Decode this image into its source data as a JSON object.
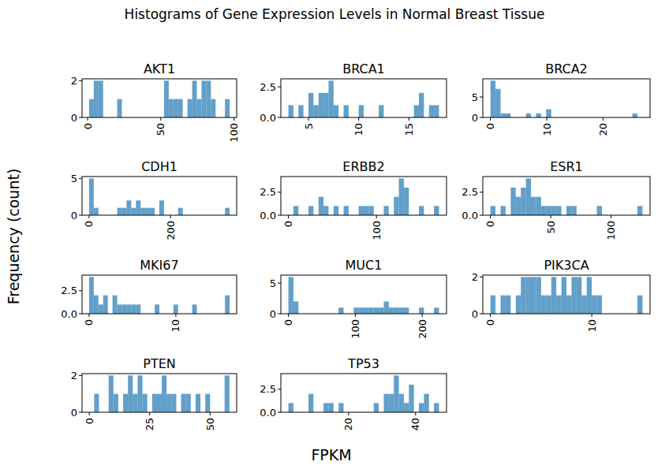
{
  "title": "Histograms of Gene Expression Levels in Normal Breast Tissue",
  "x_label": "FPKM",
  "y_label": "Frequency (count)",
  "chart_data": [
    {
      "type": "histogram",
      "title": "AKT1",
      "color": "#1f77b4",
      "bins": [
        1,
        4.2,
        7.4,
        10.6,
        13.8,
        17,
        20.2,
        23.4,
        26.6,
        29.8,
        33,
        36.2,
        39.4,
        42.6,
        45.8,
        49,
        52.2,
        55.4,
        58.6,
        61.8,
        65,
        68.2,
        71.4,
        74.6,
        77.8,
        81,
        84.2,
        87.4,
        90.6,
        93.8,
        97
      ],
      "counts": [
        1,
        2,
        2,
        0,
        0,
        0,
        1,
        0,
        0,
        0,
        0,
        0,
        0,
        0,
        0,
        0,
        2,
        1,
        1,
        1,
        0,
        1,
        2,
        1,
        2,
        2,
        1,
        0,
        0,
        1
      ],
      "xlim": [
        -3.8,
        101.8
      ],
      "ylim": [
        0,
        2.1
      ],
      "xticks": [
        0,
        50,
        100
      ],
      "yticks": [
        0,
        2
      ]
    },
    {
      "type": "histogram",
      "title": "BRCA1",
      "color": "#1f77b4",
      "bins": [
        3,
        3.5,
        4,
        4.5,
        5,
        5.5,
        6,
        6.5,
        7,
        7.5,
        8,
        8.5,
        9,
        9.5,
        10,
        10.5,
        11,
        11.5,
        12,
        12.5,
        13,
        13.5,
        14,
        14.5,
        15,
        15.5,
        16,
        16.5,
        17,
        17.5,
        18
      ],
      "counts": [
        1,
        0,
        1,
        0,
        2,
        1,
        2,
        2,
        3,
        1,
        0,
        1,
        0,
        0,
        1,
        0,
        0,
        0,
        1,
        0,
        0,
        0,
        0,
        0,
        0,
        1,
        2,
        0,
        1,
        1
      ],
      "xlim": [
        2.25,
        18.75
      ],
      "ylim": [
        0,
        3.15
      ],
      "xticks": [
        5,
        10,
        15
      ],
      "yticks": [
        {
          "value": 0,
          "label": "0.0"
        },
        2.5
      ]
    },
    {
      "type": "histogram",
      "title": "BRCA2",
      "color": "#1f77b4",
      "bins": [
        0,
        0.9,
        1.8,
        2.7,
        3.6,
        4.5,
        5.4,
        6.3,
        7.2,
        8.1,
        9,
        9.9,
        10.8,
        11.7,
        12.6,
        13.5,
        14.4,
        15.3,
        16.2,
        17.1,
        18,
        18.9,
        19.8,
        20.7,
        21.6,
        22.5,
        23.4,
        24.3,
        25.2,
        26.1,
        27
      ],
      "counts": [
        9,
        7,
        1,
        1,
        0,
        0,
        0,
        1,
        0,
        1,
        0,
        2,
        0,
        0,
        0,
        0,
        0,
        0,
        0,
        0,
        0,
        0,
        0,
        0,
        0,
        0,
        0,
        0,
        1,
        0
      ],
      "xlim": [
        -1.35,
        28.35
      ],
      "ylim": [
        0,
        9.45
      ],
      "xticks": [
        0,
        10,
        20
      ],
      "yticks": [
        0,
        5
      ]
    },
    {
      "type": "histogram",
      "title": "CDH1",
      "color": "#1f77b4",
      "bins": [
        0,
        11.5,
        23,
        34.5,
        46,
        57.5,
        69,
        80.5,
        92,
        103.5,
        115,
        126.5,
        138,
        149.5,
        161,
        172.5,
        184,
        195.5,
        207,
        218.5,
        230,
        241.5,
        253,
        264.5,
        276,
        287.5,
        299,
        310.5,
        322,
        333.5,
        345
      ],
      "counts": [
        5,
        1,
        0,
        0,
        0,
        0,
        1,
        1,
        2,
        1,
        2,
        1,
        1,
        1,
        0,
        2,
        0,
        0,
        0,
        1,
        0,
        0,
        0,
        0,
        0,
        0,
        0,
        0,
        0,
        1
      ],
      "xlim": [
        -17.25,
        362.25
      ],
      "ylim": [
        0,
        5.25
      ],
      "xticks": [
        0,
        200
      ],
      "yticks": [
        0,
        5
      ]
    },
    {
      "type": "histogram",
      "title": "ERBB2",
      "color": "#1f77b4",
      "bins": [
        0,
        5.7,
        11.4,
        17.1,
        22.8,
        28.5,
        34.2,
        39.9,
        45.6,
        51.3,
        57,
        62.7,
        68.4,
        74.1,
        79.8,
        85.5,
        91.2,
        96.9,
        102.6,
        108.3,
        114,
        119.7,
        125.4,
        131.1,
        136.8,
        142.5,
        148.2,
        153.9,
        159.6,
        165.3,
        171
      ],
      "counts": [
        0,
        1,
        0,
        0,
        1,
        0,
        2,
        1,
        0,
        1,
        0,
        1,
        0,
        0,
        1,
        1,
        1,
        0,
        0,
        1,
        0,
        2,
        4,
        3,
        0,
        0,
        1,
        0,
        0,
        1
      ],
      "xlim": [
        -8.55,
        179.55
      ],
      "ylim": [
        0,
        4.2
      ],
      "xticks": [
        0,
        100
      ],
      "yticks": [
        {
          "value": 0,
          "label": "0.0"
        },
        2.5
      ]
    },
    {
      "type": "histogram",
      "title": "ESR1",
      "color": "#1f77b4",
      "bins": [
        0,
        4.2,
        8.4,
        12.6,
        16.8,
        21,
        25.2,
        29.4,
        33.6,
        37.8,
        42,
        46.2,
        50.4,
        54.6,
        58.8,
        63,
        67.2,
        71.4,
        75.6,
        79.8,
        84,
        88.2,
        92.4,
        96.6,
        100.8,
        105,
        109.2,
        113.4,
        117.6,
        121.8,
        126
      ],
      "counts": [
        1,
        0,
        1,
        0,
        3,
        2,
        3,
        4,
        2,
        2,
        1,
        1,
        1,
        1,
        0,
        1,
        1,
        0,
        0,
        0,
        0,
        1,
        0,
        0,
        0,
        0,
        0,
        0,
        0,
        1
      ],
      "xlim": [
        -6.3,
        132.3
      ],
      "ylim": [
        0,
        4.2
      ],
      "xticks": [
        0,
        50,
        100
      ],
      "yticks": [
        {
          "value": 0,
          "label": "0.0"
        },
        2.5
      ]
    },
    {
      "type": "histogram",
      "title": "MKI67",
      "color": "#1f77b4",
      "bins": [
        0,
        0.54,
        1.08,
        1.62,
        2.16,
        2.7,
        3.24,
        3.78,
        4.32,
        4.86,
        5.4,
        5.94,
        6.48,
        7.02,
        7.56,
        8.1,
        8.64,
        9.18,
        9.72,
        10.26,
        10.8,
        11.34,
        11.88,
        12.42,
        12.96,
        13.5,
        14.04,
        14.58,
        15.12,
        15.66,
        16.2
      ],
      "counts": [
        4,
        2,
        1,
        2,
        0,
        2,
        1,
        1,
        1,
        1,
        1,
        0,
        0,
        0,
        1,
        0,
        0,
        0,
        1,
        0,
        0,
        0,
        1,
        0,
        0,
        0,
        0,
        0,
        0,
        2
      ],
      "xlim": [
        -0.81,
        17.01
      ],
      "ylim": [
        0,
        4.2
      ],
      "xticks": [
        0,
        10
      ],
      "yticks": [
        {
          "value": 0,
          "label": "0.0"
        },
        2.5
      ]
    },
    {
      "type": "histogram",
      "title": "MUC1",
      "color": "#1f77b4",
      "bins": [
        0,
        7.5,
        15,
        22.5,
        30,
        37.5,
        45,
        52.5,
        60,
        67.5,
        75,
        82.5,
        90,
        97.5,
        105,
        112.5,
        120,
        127.5,
        135,
        142.5,
        150,
        157.5,
        165,
        172.5,
        180,
        187.5,
        195,
        202.5,
        210,
        217.5,
        225
      ],
      "counts": [
        6,
        2,
        0,
        0,
        0,
        0,
        0,
        0,
        0,
        0,
        1,
        0,
        0,
        1,
        1,
        1,
        1,
        1,
        1,
        2,
        1,
        1,
        1,
        1,
        0,
        0,
        1,
        0,
        0,
        1
      ],
      "xlim": [
        -11.25,
        236.25
      ],
      "ylim": [
        0,
        6.3
      ],
      "xticks": [
        0,
        100,
        200
      ],
      "yticks": [
        0,
        5
      ]
    },
    {
      "type": "histogram",
      "title": "PIK3CA",
      "color": "#1f77b4",
      "bins": [
        0,
        0.5,
        1,
        1.5,
        2,
        2.5,
        3,
        3.5,
        4,
        4.5,
        5,
        5.5,
        6,
        6.5,
        7,
        7.5,
        8,
        8.5,
        9,
        9.5,
        10,
        10.5,
        11,
        11.5,
        12,
        12.5,
        13,
        13.5,
        14,
        14.5,
        15
      ],
      "counts": [
        1,
        0,
        1,
        1,
        0,
        1,
        2,
        2,
        2,
        2,
        1,
        1,
        2,
        1,
        2,
        1,
        2,
        2,
        1,
        2,
        1,
        1,
        0,
        0,
        0,
        0,
        0,
        0,
        0,
        1
      ],
      "xlim": [
        -0.75,
        15.75
      ],
      "ylim": [
        0,
        2.1
      ],
      "xticks": [
        0,
        10
      ],
      "yticks": [
        0,
        2
      ]
    },
    {
      "type": "histogram",
      "title": "PTEN",
      "color": "#1f77b4",
      "bins": [
        0,
        2,
        4,
        6,
        8,
        10,
        12,
        14,
        16,
        18,
        20,
        22,
        24,
        26,
        28,
        30,
        32,
        34,
        36,
        38,
        40,
        42,
        44,
        46,
        48,
        50,
        52,
        54,
        56,
        58,
        60
      ],
      "counts": [
        0,
        1,
        0,
        0,
        2,
        1,
        0,
        1,
        2,
        1,
        2,
        1,
        0,
        1,
        1,
        2,
        1,
        1,
        0,
        1,
        1,
        0,
        1,
        0,
        1,
        0,
        0,
        0,
        2,
        0
      ],
      "xlim": [
        -3,
        61
      ],
      "ylim": [
        0,
        2.1
      ],
      "xticks": [
        0,
        25,
        50
      ],
      "yticks": [
        0,
        2
      ]
    },
    {
      "type": "histogram",
      "title": "TP53",
      "color": "#1f77b4",
      "bins": [
        2,
        3.5,
        5,
        6.5,
        8,
        9.5,
        11,
        12.5,
        14,
        15.5,
        17,
        18.5,
        20,
        21.5,
        23,
        24.5,
        26,
        27.5,
        29,
        30.5,
        32,
        33.5,
        35,
        36.5,
        38,
        39.5,
        41,
        42.5,
        44,
        45.5,
        47
      ],
      "counts": [
        1,
        0,
        0,
        0,
        2,
        0,
        0,
        1,
        1,
        0,
        1,
        0,
        0,
        0,
        0,
        0,
        0,
        1,
        0,
        2,
        2,
        4,
        2,
        1,
        3,
        0,
        1,
        2,
        0,
        1
      ],
      "xlim": [
        -0.25,
        49.25
      ],
      "ylim": [
        0,
        4.2
      ],
      "xticks": [
        20,
        40
      ],
      "yticks": [
        {
          "value": 0,
          "label": "0.0"
        },
        2.5
      ]
    }
  ]
}
